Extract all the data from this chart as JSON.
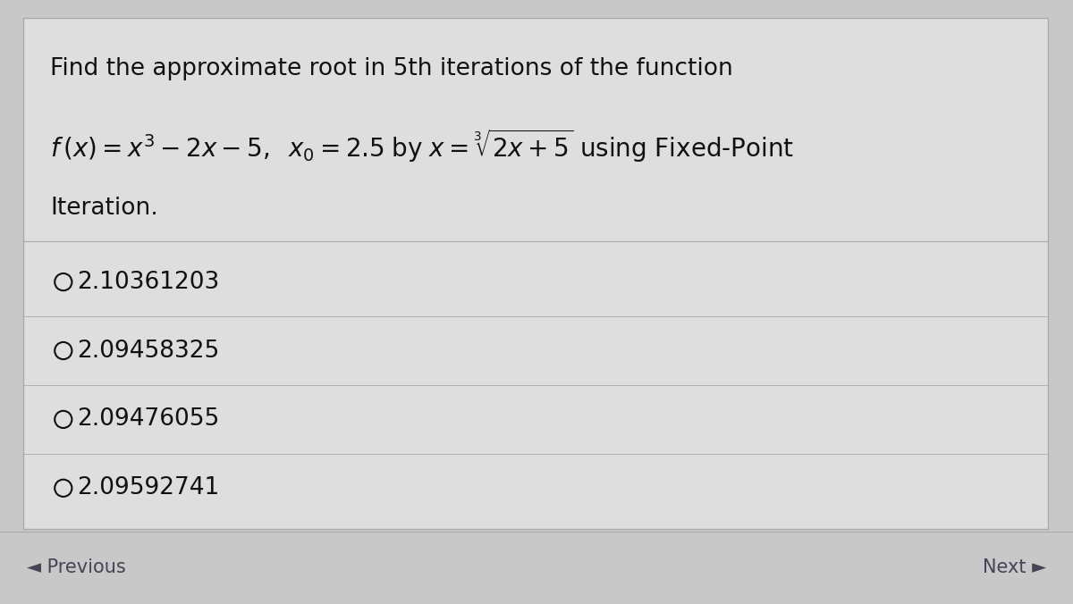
{
  "bg_outer_color": "#c8c8c8",
  "card_color": "#dedede",
  "card_border_color": "#aaaaaa",
  "title_line1": "Find the approximate root in 5th iterations of the function",
  "math_line": "$f\\,(x) = x^3 - 2x - 5,\\;\\; x_0 = 2.5 \\; \\mathrm{by} \\; x = \\sqrt[3]{2x+5}$ using Fixed-Point",
  "title_line3": "Iteration.",
  "options": [
    "2.10361203",
    "2.09458325",
    "2.09476055",
    "2.09592741"
  ],
  "footer_prev": "◄ Previous",
  "footer_next": "Next ►",
  "text_color": "#111111",
  "option_text_color": "#111111",
  "footer_text_color": "#444455",
  "divider_color": "#aaaaaa",
  "font_size_title": 19,
  "font_size_math": 20,
  "font_size_options": 19,
  "font_size_footer": 15
}
